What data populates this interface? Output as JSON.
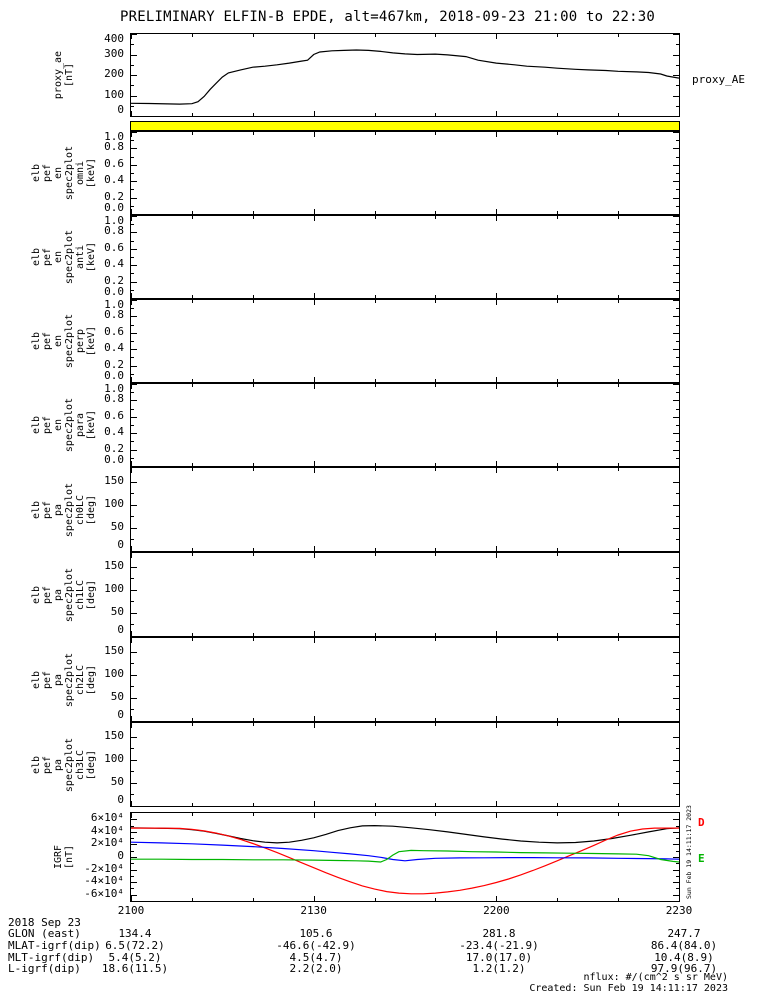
{
  "title": "PRELIMINARY ELFIN-B EPDE, alt=467km, 2018-09-23 21:00 to 22:30",
  "side_timestamp": "Sun Feb 19 14:11:17 2023",
  "x_axis_date_label": "2018 Sep 23",
  "footer": {
    "units_note": "nflux: #/(cm^2 s sr MeV)",
    "created": "Created: Sun Feb 19 14:11:17 2023"
  },
  "bottom_table": {
    "rows": [
      {
        "label": "GLON (east)",
        "values": [
          "134.4",
          "105.6",
          "281.8",
          "247.7"
        ]
      },
      {
        "label": "MLAT-igrf(dip)",
        "values": [
          "6.5(72.2)",
          "-46.6(-42.9)",
          "-23.4(-21.9)",
          "86.4(84.0)"
        ]
      },
      {
        "label": "MLT-igrf(dip)",
        "values": [
          "5.4(5.2)",
          "4.5(4.7)",
          "17.0(17.0)",
          "10.4(8.9)"
        ]
      },
      {
        "label": "L-igrf(dip)",
        "values": [
          "18.6(11.5)",
          "2.2(2.0)",
          "1.2(1.2)",
          "97.9(96.7)"
        ]
      }
    ]
  },
  "chart_data": {
    "type": "line",
    "x": {
      "unit": "minutes since 2018-09-23 21:00 UT",
      "range": [
        0,
        90
      ],
      "major_ticks": [
        0,
        30,
        60,
        90
      ],
      "tick_labels": [
        "2100",
        "2130",
        "2200",
        "2230"
      ],
      "minor_tick_step": 10
    },
    "panels": [
      {
        "id": "proxy-ae",
        "ylabel_lines": [
          "proxy_ae",
          "[nT]"
        ],
        "right_label": "proxy_AE",
        "ylim": [
          0,
          400
        ],
        "yticks": [
          0,
          100,
          200,
          300,
          400
        ],
        "ytick_labels": [
          "0",
          "100",
          "200",
          "300",
          "400"
        ],
        "series": [
          {
            "name": "proxy_AE",
            "color": "#000000",
            "x": [
              0,
              3,
              6,
              8,
              10,
              11,
              12,
              13,
              14,
              15,
              16,
              18,
              20,
              22,
              24,
              26,
              28,
              29,
              30,
              31,
              33,
              35,
              37,
              39,
              41,
              43,
              45,
              47,
              50,
              52,
              55,
              57,
              60,
              63,
              65,
              68,
              70,
              73,
              75,
              78,
              80,
              83,
              85,
              87,
              88,
              90
            ],
            "y": [
              62,
              61,
              59,
              58,
              60,
              70,
              95,
              130,
              160,
              190,
              210,
              225,
              238,
              243,
              250,
              258,
              268,
              272,
              300,
              312,
              318,
              320,
              322,
              320,
              315,
              308,
              303,
              300,
              302,
              298,
              290,
              272,
              258,
              250,
              243,
              238,
              233,
              228,
              225,
              222,
              218,
              215,
              212,
              205,
              195,
              185
            ]
          }
        ]
      },
      {
        "id": "fast-survey-flag-bar",
        "fill": "#ffff00",
        "ylim": [
          0,
          1
        ],
        "yticks": [],
        "ytick_labels": [],
        "series": []
      },
      {
        "id": "en-spec-omni",
        "ylabel_lines": [
          "elb",
          "pef",
          "en",
          "spec2plot",
          "omni",
          "[keV]"
        ],
        "ylim": [
          0,
          1
        ],
        "yticks": [
          0,
          0.2,
          0.4,
          0.6,
          0.8,
          1.0
        ],
        "ytick_labels": [
          "0.0",
          "0.2",
          "0.4",
          "0.6",
          "0.8",
          "1.0"
        ],
        "series": []
      },
      {
        "id": "en-spec-anti",
        "ylabel_lines": [
          "elb",
          "pef",
          "en",
          "spec2plot",
          "anti",
          "[keV]"
        ],
        "ylim": [
          0,
          1
        ],
        "yticks": [
          0,
          0.2,
          0.4,
          0.6,
          0.8,
          1.0
        ],
        "ytick_labels": [
          "0.0",
          "0.2",
          "0.4",
          "0.6",
          "0.8",
          "1.0"
        ],
        "series": []
      },
      {
        "id": "en-spec-perp",
        "ylabel_lines": [
          "elb",
          "pef",
          "en",
          "spec2plot",
          "perp",
          "[keV]"
        ],
        "ylim": [
          0,
          1
        ],
        "yticks": [
          0,
          0.2,
          0.4,
          0.6,
          0.8,
          1.0
        ],
        "ytick_labels": [
          "0.0",
          "0.2",
          "0.4",
          "0.6",
          "0.8",
          "1.0"
        ],
        "series": []
      },
      {
        "id": "en-spec-para",
        "ylabel_lines": [
          "elb",
          "pef",
          "en",
          "spec2plot",
          "para",
          "[keV]"
        ],
        "ylim": [
          0,
          1
        ],
        "yticks": [
          0,
          0.2,
          0.4,
          0.6,
          0.8,
          1.0
        ],
        "ytick_labels": [
          "0.0",
          "0.2",
          "0.4",
          "0.6",
          "0.8",
          "1.0"
        ],
        "series": []
      },
      {
        "id": "pa-spec-ch0LC",
        "ylabel_lines": [
          "elb",
          "pef",
          "pa",
          "spec2plot",
          "ch0LC",
          "[deg]"
        ],
        "ylim": [
          0,
          180
        ],
        "yticks": [
          0,
          50,
          100,
          150
        ],
        "ytick_labels": [
          "0",
          "50",
          "100",
          "150"
        ],
        "series": []
      },
      {
        "id": "pa-spec-ch1LC",
        "ylabel_lines": [
          "elb",
          "pef",
          "pa",
          "spec2plot",
          "ch1LC",
          "[deg]"
        ],
        "ylim": [
          0,
          180
        ],
        "yticks": [
          0,
          50,
          100,
          150
        ],
        "ytick_labels": [
          "0",
          "50",
          "100",
          "150"
        ],
        "series": []
      },
      {
        "id": "pa-spec-ch2LC",
        "ylabel_lines": [
          "elb",
          "pef",
          "pa",
          "spec2plot",
          "ch2LC",
          "[deg]"
        ],
        "ylim": [
          0,
          180
        ],
        "yticks": [
          0,
          50,
          100,
          150
        ],
        "ytick_labels": [
          "0",
          "50",
          "100",
          "150"
        ],
        "series": []
      },
      {
        "id": "pa-spec-ch3LC",
        "ylabel_lines": [
          "elb",
          "pef",
          "pa",
          "spec2plot",
          "ch3LC",
          "[deg]"
        ],
        "ylim": [
          0,
          180
        ],
        "yticks": [
          0,
          50,
          100,
          150
        ],
        "ytick_labels": [
          "0",
          "50",
          "100",
          "150"
        ],
        "series": []
      },
      {
        "id": "igrf",
        "ylabel_lines": [
          "IGRF",
          "[nT]"
        ],
        "ylim": [
          -70000,
          70000
        ],
        "yticks": [
          -60000,
          -40000,
          -20000,
          0,
          20000,
          40000,
          60000
        ],
        "ytick_labels": [
          "-6×10⁴",
          "-4×10⁴",
          "-2×10⁴",
          "0",
          "2×10⁴",
          "4×10⁴",
          "6×10⁴"
        ],
        "legend": [
          {
            "label": "D",
            "color": "#ff0000"
          },
          {
            "label": "E",
            "color": "#00b400"
          }
        ],
        "series": [
          {
            "name": "total",
            "color": "#000000",
            "x": [
              0,
              4,
              8,
              10,
              12,
              14,
              16,
              18,
              20,
              22,
              24,
              26,
              28,
              30,
              32,
              34,
              36,
              38,
              40,
              43,
              46,
              49,
              52,
              55,
              58,
              61,
              64,
              67,
              70,
              73,
              76,
              79,
              82,
              85,
              88,
              90
            ],
            "y": [
              46500,
              46000,
              45000,
              43500,
              41000,
              37500,
              33500,
              29500,
              26000,
              23500,
              22500,
              23500,
              26500,
              30500,
              36000,
              42000,
              46500,
              49500,
              50000,
              49000,
              46500,
              43500,
              40000,
              36000,
              32000,
              28500,
              25500,
              23500,
              22500,
              23000,
              25500,
              29500,
              34500,
              40000,
              45000,
              46500
            ]
          },
          {
            "name": "D",
            "color": "#ff0000",
            "x": [
              0,
              4,
              8,
              10,
              12,
              14,
              16,
              18,
              20,
              22,
              24,
              26,
              28,
              30,
              32,
              34,
              36,
              38,
              40,
              42,
              44,
              46,
              48,
              50,
              52,
              54,
              56,
              58,
              60,
              62,
              64,
              66,
              68,
              70,
              72,
              74,
              76,
              78,
              80,
              82,
              84,
              86,
              88,
              90
            ],
            "y": [
              46000,
              46000,
              45500,
              44000,
              41500,
              38000,
              33500,
              28000,
              21500,
              14500,
              7000,
              -1000,
              -9000,
              -17000,
              -25000,
              -32500,
              -39500,
              -46000,
              -51000,
              -55000,
              -57500,
              -58500,
              -58500,
              -57500,
              -55500,
              -53000,
              -49500,
              -45500,
              -40500,
              -35000,
              -28500,
              -21500,
              -14000,
              -6000,
              2000,
              10000,
              18500,
              27000,
              35000,
              41000,
              44500,
              46000,
              46000,
              46000
            ]
          },
          {
            "name": "N",
            "color": "#0000ff",
            "x": [
              0,
              5,
              10,
              15,
              20,
              25,
              30,
              33,
              36,
              39,
              41,
              43,
              45,
              47,
              50,
              54,
              58,
              62,
              66,
              70,
              75,
              80,
              85,
              88,
              90
            ],
            "y": [
              23500,
              22500,
              21000,
              19000,
              16500,
              13500,
              10000,
              7500,
              5000,
              2000,
              -500,
              -4000,
              -6000,
              -4000,
              -2000,
              -1500,
              -1200,
              -1000,
              -1000,
              -1200,
              -1500,
              -2000,
              -2500,
              -3000,
              -3500
            ]
          },
          {
            "name": "E",
            "color": "#00b400",
            "x": [
              0,
              5,
              10,
              15,
              20,
              25,
              30,
              34,
              37,
              39,
              41,
              42,
              43,
              44,
              46,
              48,
              52,
              56,
              60,
              64,
              68,
              72,
              76,
              80,
              83,
              85,
              87,
              89,
              90
            ],
            "y": [
              -3500,
              -3500,
              -4000,
              -4000,
              -4500,
              -4500,
              -5000,
              -5500,
              -6000,
              -6500,
              -8000,
              -4000,
              3000,
              8500,
              10500,
              10000,
              9500,
              8500,
              8000,
              7000,
              6500,
              6000,
              5500,
              5000,
              4500,
              2000,
              -4000,
              -7000,
              -8000
            ]
          }
        ]
      }
    ]
  }
}
